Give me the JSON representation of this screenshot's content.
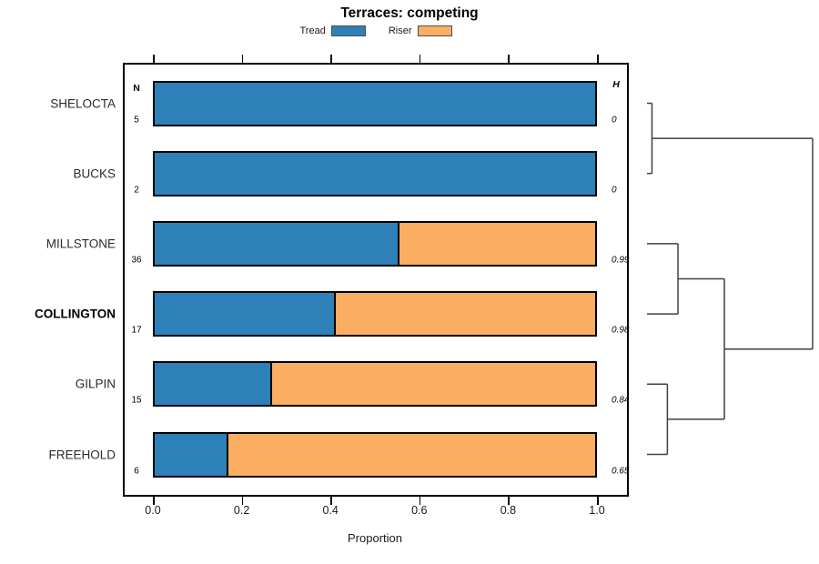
{
  "title": "Terraces: competing",
  "legend": {
    "items": [
      {
        "label": "Tread",
        "color": "#2E81B8"
      },
      {
        "label": "Riser",
        "color": "#FBAD62"
      }
    ]
  },
  "columns": {
    "n_header": "N",
    "h_header": "H"
  },
  "chart_data": {
    "type": "bar",
    "orientation": "horizontal",
    "stacked": true,
    "title": "Terraces: competing",
    "xlabel": "Proportion",
    "xlim": [
      0,
      1
    ],
    "xticks": [
      0,
      0.2,
      0.4,
      0.6,
      0.8,
      1.0
    ],
    "xtick_labels": [
      "0.0",
      "0.2",
      "0.4",
      "0.6",
      "0.8",
      "1.0"
    ],
    "grid": false,
    "legend_position": "top",
    "categories": [
      "SHELOCTA",
      "BUCKS",
      "MILLSTONE",
      "COLLINGTON",
      "GILPIN",
      "FREEHOLD"
    ],
    "bold_category": "COLLINGTON",
    "series": [
      {
        "name": "Tread",
        "color": "#2E81B8",
        "values": [
          1.0,
          1.0,
          0.556,
          0.412,
          0.267,
          0.167
        ]
      },
      {
        "name": "Riser",
        "color": "#FBAD62",
        "values": [
          0.0,
          0.0,
          0.444,
          0.588,
          0.733,
          0.833
        ]
      }
    ],
    "n_counts": [
      5,
      2,
      36,
      17,
      15,
      6
    ],
    "h_values": [
      "0",
      "0",
      "0.99",
      "0.98",
      "0.84",
      "0.65"
    ],
    "dendrogram": {
      "height": 1.0,
      "children": [
        {
          "height": 0.03,
          "children": [
            {
              "leaf": "SHELOCTA"
            },
            {
              "leaf": "BUCKS"
            }
          ]
        },
        {
          "height": 0.467,
          "children": [
            {
              "height": 0.187,
              "children": [
                {
                  "leaf": "MILLSTONE"
                },
                {
                  "leaf": "COLLINGTON"
                }
              ]
            },
            {
              "height": 0.123,
              "children": [
                {
                  "leaf": "GILPIN"
                },
                {
                  "leaf": "FREEHOLD"
                }
              ]
            }
          ]
        }
      ]
    }
  }
}
